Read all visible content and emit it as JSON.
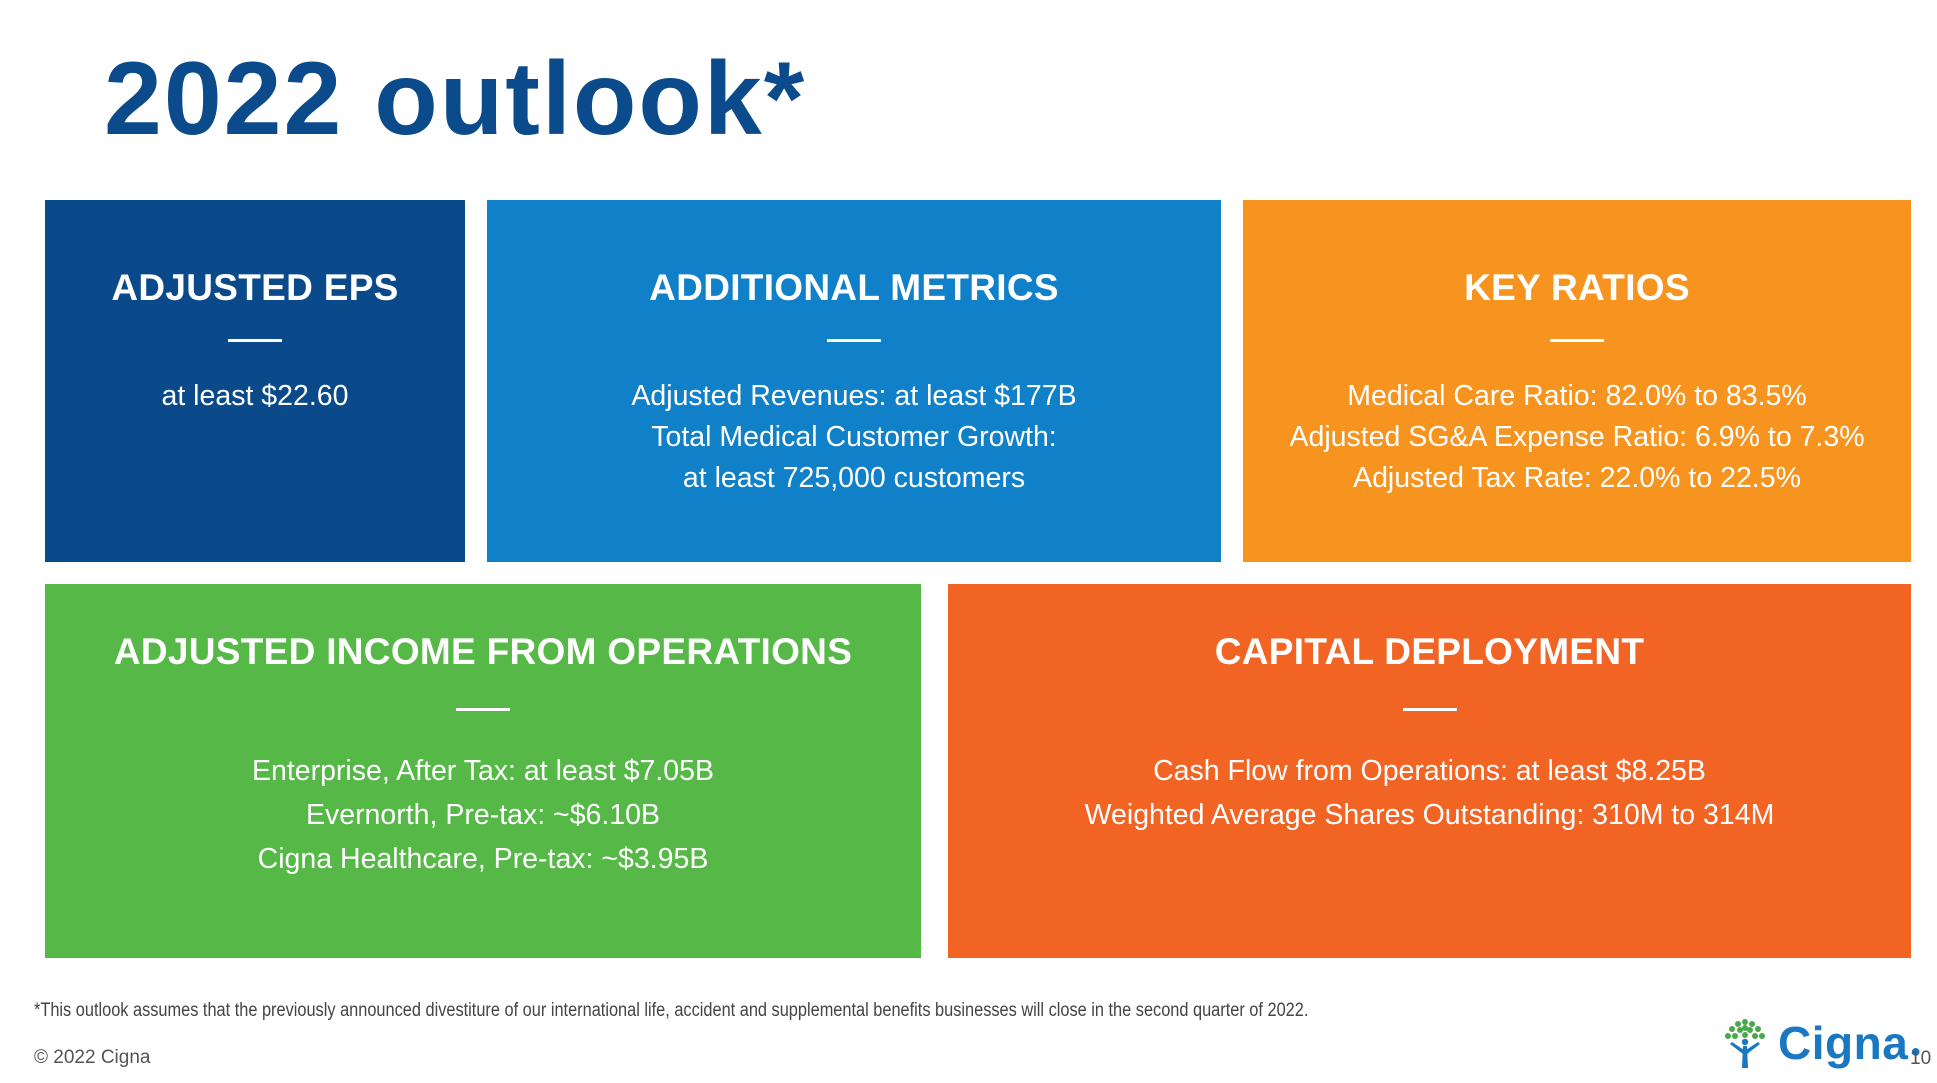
{
  "slide": {
    "title": "2022 outlook*"
  },
  "boxes": {
    "eps": {
      "heading": "ADJUSTED EPS",
      "lines": [
        "at least $22.60"
      ],
      "color": "#0a4a8a"
    },
    "metrics": {
      "heading": "ADDITIONAL METRICS",
      "lines": [
        "Adjusted Revenues: at least $177B",
        "Total Medical Customer Growth:",
        "at least 725,000 customers"
      ],
      "color": "#1080c8"
    },
    "ratios": {
      "heading": "KEY RATIOS",
      "lines": [
        "Medical Care Ratio: 82.0% to 83.5%",
        "Adjusted SG&A Expense Ratio: 6.9% to 7.3%",
        "Adjusted Tax Rate: 22.0% to 22.5%"
      ],
      "color": "#f7941f"
    },
    "income": {
      "heading": "ADJUSTED INCOME FROM OPERATIONS",
      "lines": [
        "Enterprise, After Tax: at least $7.05B",
        "Evernorth, Pre-tax: ~$6.10B",
        "Cigna Healthcare, Pre-tax: ~$3.95B"
      ],
      "color": "#56b847"
    },
    "capital": {
      "heading": "CAPITAL DEPLOYMENT",
      "lines": [
        "Cash Flow from Operations: at least $8.25B",
        "Weighted Average Shares Outstanding: 310M to 314M"
      ],
      "color": "#f26424"
    }
  },
  "footer": {
    "footnote": "*This outlook assumes that the previously announced divestiture of our international life, accident and supplemental benefits businesses will close in the second quarter of 2022.",
    "copyright": "© 2022 Cigna",
    "logo_text": "Cigna",
    "logo_icon": "tree-of-life-icon",
    "page_number": "10"
  }
}
